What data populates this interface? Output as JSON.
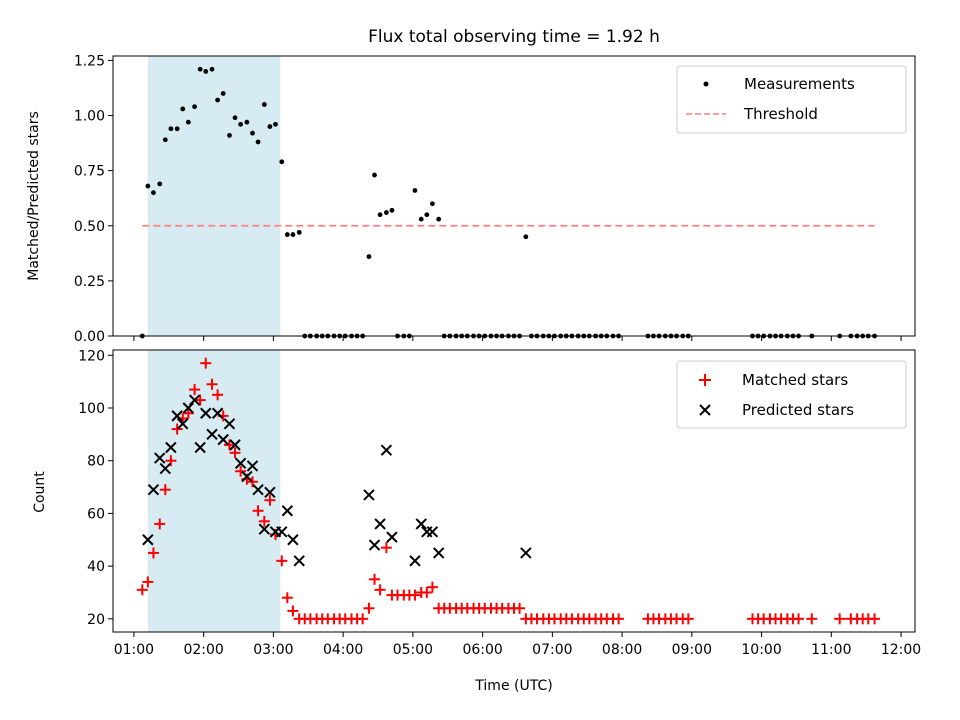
{
  "figure": {
    "title": "Flux total observing time = 1.92 h",
    "shaded_interval_hours": [
      1.2,
      3.1
    ],
    "shade_color": "#add8e6"
  },
  "chart_data": [
    {
      "type": "scatter",
      "xlabel": "",
      "ylabel": "Matched/Predicted stars",
      "xlim": [
        0.7,
        12.2
      ],
      "ylim": [
        0,
        1.27
      ],
      "yticks": [
        "0.00",
        "0.25",
        "0.50",
        "0.75",
        "1.00",
        "1.25"
      ],
      "legend_position": "top-right",
      "series": [
        {
          "name": "Measurements",
          "color": "#000000",
          "marker": "dot",
          "x": [
            1.12,
            1.2,
            1.28,
            1.37,
            1.45,
            1.53,
            1.62,
            1.7,
            1.78,
            1.87,
            1.95,
            2.03,
            2.12,
            2.2,
            2.28,
            2.37,
            2.45,
            2.53,
            2.62,
            2.7,
            2.78,
            2.87,
            2.95,
            3.03,
            3.12,
            3.2,
            3.28,
            3.37,
            3.45,
            3.53,
            3.62,
            3.7,
            3.78,
            3.87,
            3.95,
            4.03,
            4.12,
            4.2,
            4.28,
            4.37,
            4.45,
            4.53,
            4.62,
            4.7,
            4.78,
            4.87,
            4.95,
            5.03,
            5.12,
            5.2,
            5.28,
            5.37,
            5.45,
            5.53,
            5.62,
            5.7,
            5.78,
            5.87,
            5.95,
            6.03,
            6.12,
            6.2,
            6.28,
            6.37,
            6.45,
            6.53,
            6.62,
            6.7,
            6.78,
            6.87,
            6.95,
            7.03,
            7.12,
            7.2,
            7.28,
            7.37,
            7.45,
            7.53,
            7.62,
            7.7,
            7.78,
            7.87,
            7.95,
            8.37,
            8.45,
            8.53,
            8.62,
            8.7,
            8.78,
            8.87,
            8.95,
            9.87,
            9.95,
            10.03,
            10.12,
            10.2,
            10.28,
            10.37,
            10.45,
            10.53,
            10.72,
            11.12,
            11.28,
            11.37,
            11.45,
            11.53,
            11.62
          ],
          "y": [
            0,
            0.68,
            0.65,
            0.69,
            0.89,
            0.94,
            0.94,
            1.03,
            0.97,
            1.04,
            1.21,
            1.2,
            1.21,
            1.07,
            1.1,
            0.91,
            0.99,
            0.96,
            0.97,
            0.92,
            0.88,
            1.05,
            0.95,
            0.96,
            0.79,
            0.46,
            0.46,
            0.47,
            0,
            0,
            0,
            0,
            0,
            0,
            0,
            0,
            0,
            0,
            0,
            0.36,
            0.73,
            0.55,
            0.56,
            0.57,
            0,
            0,
            0,
            0.66,
            0.53,
            0.55,
            0.6,
            0.53,
            0,
            0,
            0,
            0,
            0,
            0,
            0,
            0,
            0,
            0,
            0,
            0,
            0,
            0,
            0.45,
            0,
            0,
            0,
            0,
            0,
            0,
            0,
            0,
            0,
            0,
            0,
            0,
            0,
            0,
            0,
            0,
            0,
            0,
            0,
            0,
            0,
            0,
            0,
            0,
            0,
            0,
            0,
            0,
            0,
            0,
            0,
            0,
            0,
            0,
            0,
            0,
            0,
            0,
            0,
            0
          ]
        },
        {
          "name": "Threshold",
          "color": "#ff7f7f",
          "style": "dashed",
          "x": [
            1.12,
            11.62
          ],
          "y": [
            0.5,
            0.5
          ]
        }
      ]
    },
    {
      "type": "scatter",
      "xlabel": "Time (UTC)",
      "ylabel": "Count",
      "xlim": [
        0.7,
        12.2
      ],
      "ylim": [
        15,
        122
      ],
      "yticks": [
        "20",
        "40",
        "60",
        "80",
        "100",
        "120"
      ],
      "xticks": [
        "01:00",
        "02:00",
        "03:00",
        "04:00",
        "05:00",
        "06:00",
        "07:00",
        "08:00",
        "09:00",
        "10:00",
        "11:00",
        "12:00"
      ],
      "legend_position": "top-right",
      "series": [
        {
          "name": "Matched stars",
          "color": "#ff0000",
          "marker": "plus",
          "x": [
            1.12,
            1.2,
            1.28,
            1.37,
            1.45,
            1.53,
            1.62,
            1.7,
            1.78,
            1.87,
            1.95,
            2.03,
            2.12,
            2.2,
            2.28,
            2.37,
            2.45,
            2.53,
            2.62,
            2.7,
            2.78,
            2.87,
            2.95,
            3.03,
            3.12,
            3.2,
            3.28,
            3.37,
            3.45,
            3.53,
            3.62,
            3.7,
            3.78,
            3.87,
            3.95,
            4.03,
            4.12,
            4.2,
            4.28,
            4.37,
            4.45,
            4.53,
            4.62,
            4.7,
            4.78,
            4.87,
            4.95,
            5.03,
            5.12,
            5.2,
            5.28,
            5.37,
            5.45,
            5.53,
            5.62,
            5.7,
            5.78,
            5.87,
            5.95,
            6.03,
            6.12,
            6.2,
            6.28,
            6.37,
            6.45,
            6.53,
            6.62,
            6.7,
            6.78,
            6.87,
            6.95,
            7.03,
            7.12,
            7.2,
            7.28,
            7.37,
            7.45,
            7.53,
            7.62,
            7.7,
            7.78,
            7.87,
            7.95,
            8.37,
            8.45,
            8.53,
            8.62,
            8.7,
            8.78,
            8.87,
            8.95,
            9.87,
            9.95,
            10.03,
            10.12,
            10.2,
            10.28,
            10.37,
            10.45,
            10.53,
            10.72,
            11.12,
            11.28,
            11.37,
            11.45,
            11.53,
            11.62
          ],
          "y": [
            31,
            34,
            45,
            56,
            69,
            80,
            92,
            96,
            98,
            107,
            103,
            117,
            109,
            105,
            97,
            86,
            83,
            76,
            73,
            72,
            61,
            57,
            65,
            52,
            42,
            28,
            23,
            20,
            20,
            20,
            20,
            20,
            20,
            20,
            20,
            20,
            20,
            20,
            20,
            24,
            35,
            31,
            47,
            29,
            29,
            29,
            29,
            29,
            30,
            30,
            32,
            24,
            24,
            24,
            24,
            24,
            24,
            24,
            24,
            24,
            24,
            24,
            24,
            24,
            24,
            24,
            20,
            20,
            20,
            20,
            20,
            20,
            20,
            20,
            20,
            20,
            20,
            20,
            20,
            20,
            20,
            20,
            20,
            20,
            20,
            20,
            20,
            20,
            20,
            20,
            20,
            20,
            20,
            20,
            20,
            20,
            20,
            20,
            20,
            20,
            20,
            20,
            20,
            20,
            20,
            20,
            20
          ]
        },
        {
          "name": "Predicted stars",
          "color": "#000000",
          "marker": "x",
          "x": [
            1.2,
            1.28,
            1.37,
            1.45,
            1.53,
            1.62,
            1.7,
            1.78,
            1.87,
            1.95,
            2.03,
            2.12,
            2.2,
            2.28,
            2.37,
            2.45,
            2.53,
            2.62,
            2.7,
            2.78,
            2.87,
            2.95,
            3.03,
            3.12,
            3.2,
            3.28,
            3.37,
            4.37,
            4.45,
            4.53,
            4.62,
            4.7,
            5.03,
            5.12,
            5.2,
            5.28,
            5.37,
            6.62
          ],
          "y": [
            50,
            69,
            81,
            77,
            85,
            97,
            94,
            100,
            103,
            85,
            98,
            90,
            98,
            88,
            94,
            86,
            79,
            74,
            78,
            69,
            54,
            68,
            53,
            53,
            61,
            50,
            42,
            67,
            48,
            56,
            84,
            51,
            42,
            56,
            53,
            53,
            45,
            45
          ]
        }
      ]
    }
  ]
}
